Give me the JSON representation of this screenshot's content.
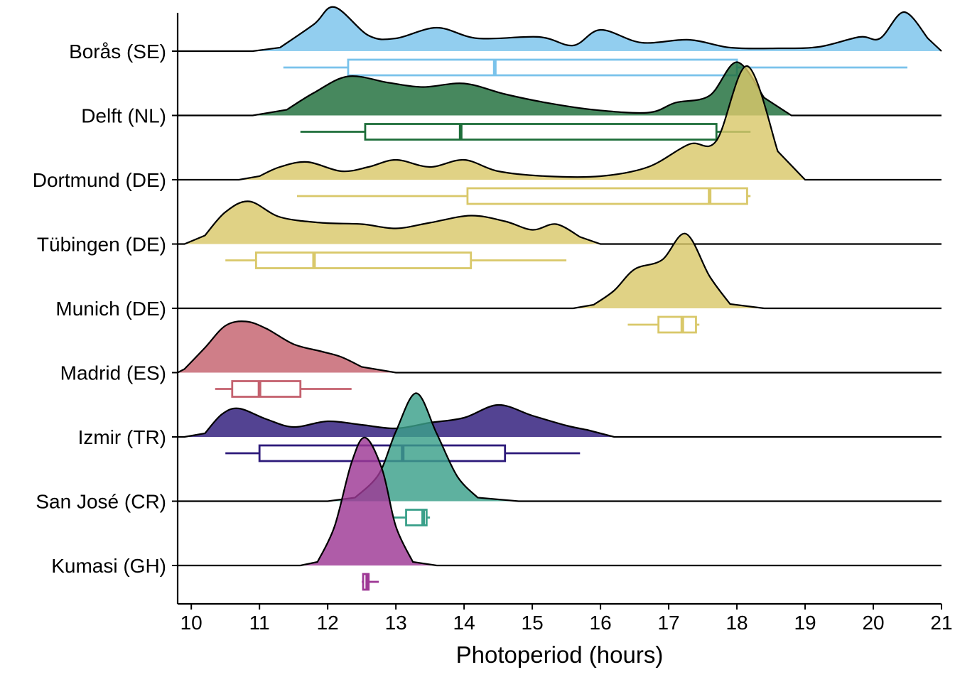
{
  "chart_data": {
    "type": "ridgeline",
    "xlabel": "Photoperiod (hours)",
    "ylabel": "",
    "xlim": [
      9.8,
      21
    ],
    "xticks": [
      10,
      11,
      12,
      13,
      14,
      15,
      16,
      17,
      18,
      19,
      20,
      21
    ],
    "series": [
      {
        "name": "Borås (SE)",
        "color": "#7AC3EB",
        "density_range": [
          10.9,
          21
        ],
        "density": [
          [
            11.3,
            0.05
          ],
          [
            11.8,
            0.38
          ],
          [
            12.1,
            0.62
          ],
          [
            12.6,
            0.22
          ],
          [
            13.0,
            0.18
          ],
          [
            13.6,
            0.33
          ],
          [
            14.2,
            0.18
          ],
          [
            15.1,
            0.2
          ],
          [
            15.6,
            0.08
          ],
          [
            16.0,
            0.3
          ],
          [
            16.6,
            0.12
          ],
          [
            17.3,
            0.16
          ],
          [
            17.9,
            0.05
          ],
          [
            18.6,
            0.04
          ],
          [
            19.2,
            0.06
          ],
          [
            19.8,
            0.2
          ],
          [
            20.1,
            0.18
          ],
          [
            20.45,
            0.55
          ],
          [
            20.8,
            0.18
          ]
        ],
        "box": {
          "whisker_low": 11.35,
          "q1": 12.3,
          "median": 14.45,
          "q3": 18.0,
          "whisker_high": 20.5
        }
      },
      {
        "name": "Delft (NL)",
        "color": "#1E6E3A",
        "density_range": [
          10.9,
          18.8
        ],
        "density": [
          [
            11.4,
            0.08
          ],
          [
            11.8,
            0.32
          ],
          [
            12.3,
            0.55
          ],
          [
            12.9,
            0.46
          ],
          [
            13.4,
            0.4
          ],
          [
            14.0,
            0.45
          ],
          [
            14.6,
            0.3
          ],
          [
            15.2,
            0.18
          ],
          [
            15.9,
            0.08
          ],
          [
            16.7,
            0.04
          ],
          [
            17.1,
            0.18
          ],
          [
            17.6,
            0.28
          ],
          [
            18.0,
            0.75
          ],
          [
            18.4,
            0.25
          ]
        ],
        "box": {
          "whisker_low": 11.6,
          "q1": 12.55,
          "median": 13.95,
          "q3": 17.7,
          "whisker_high": 18.2
        }
      },
      {
        "name": "Dortmund (DE)",
        "color": "#D9C86A",
        "density_range": [
          10.7,
          19.0
        ],
        "density": [
          [
            11.0,
            0.05
          ],
          [
            11.3,
            0.18
          ],
          [
            11.7,
            0.25
          ],
          [
            12.2,
            0.12
          ],
          [
            12.6,
            0.18
          ],
          [
            13.0,
            0.28
          ],
          [
            13.5,
            0.18
          ],
          [
            14.0,
            0.28
          ],
          [
            14.5,
            0.12
          ],
          [
            15.2,
            0.05
          ],
          [
            16.0,
            0.05
          ],
          [
            16.7,
            0.18
          ],
          [
            17.3,
            0.5
          ],
          [
            17.7,
            0.55
          ],
          [
            18.15,
            1.6
          ],
          [
            18.6,
            0.4
          ]
        ],
        "box": {
          "whisker_low": 11.55,
          "q1": 14.05,
          "median": 17.6,
          "q3": 18.15,
          "whisker_high": 18.2
        }
      },
      {
        "name": "Tübingen (DE)",
        "color": "#D9C86A",
        "density_range": [
          9.9,
          16.0
        ],
        "density": [
          [
            10.2,
            0.12
          ],
          [
            10.5,
            0.45
          ],
          [
            10.85,
            0.6
          ],
          [
            11.3,
            0.38
          ],
          [
            11.9,
            0.3
          ],
          [
            12.5,
            0.28
          ],
          [
            13.0,
            0.22
          ],
          [
            13.5,
            0.3
          ],
          [
            14.1,
            0.4
          ],
          [
            14.6,
            0.32
          ],
          [
            15.0,
            0.2
          ],
          [
            15.35,
            0.28
          ],
          [
            15.7,
            0.1
          ]
        ],
        "box": {
          "whisker_low": 10.5,
          "q1": 10.95,
          "median": 11.8,
          "q3": 14.1,
          "whisker_high": 15.5
        }
      },
      {
        "name": "Munich (DE)",
        "color": "#D9C86A",
        "density_range": [
          15.6,
          18.4
        ],
        "density": [
          [
            15.9,
            0.05
          ],
          [
            16.2,
            0.25
          ],
          [
            16.5,
            0.55
          ],
          [
            16.9,
            0.68
          ],
          [
            17.25,
            1.05
          ],
          [
            17.6,
            0.45
          ],
          [
            17.9,
            0.06
          ]
        ],
        "box": {
          "whisker_low": 16.4,
          "q1": 16.85,
          "median": 17.2,
          "q3": 17.4,
          "whisker_high": 17.45
        }
      },
      {
        "name": "Madrid (ES)",
        "color": "#C4616E",
        "density_range": [
          9.8,
          13.0
        ],
        "density": [
          [
            9.9,
            0.05
          ],
          [
            10.2,
            0.35
          ],
          [
            10.5,
            0.66
          ],
          [
            10.8,
            0.72
          ],
          [
            11.1,
            0.62
          ],
          [
            11.5,
            0.4
          ],
          [
            11.9,
            0.3
          ],
          [
            12.2,
            0.22
          ],
          [
            12.5,
            0.08
          ]
        ],
        "box": {
          "whisker_low": 10.35,
          "q1": 10.6,
          "median": 11.0,
          "q3": 11.6,
          "whisker_high": 12.35
        }
      },
      {
        "name": "Izmir (TR)",
        "color": "#2D1A7A",
        "density_range": [
          9.9,
          16.2
        ],
        "density": [
          [
            10.2,
            0.05
          ],
          [
            10.45,
            0.32
          ],
          [
            10.7,
            0.4
          ],
          [
            11.1,
            0.25
          ],
          [
            11.5,
            0.14
          ],
          [
            12.0,
            0.22
          ],
          [
            12.5,
            0.17
          ],
          [
            13.0,
            0.12
          ],
          [
            13.5,
            0.2
          ],
          [
            14.0,
            0.27
          ],
          [
            14.5,
            0.45
          ],
          [
            15.0,
            0.3
          ],
          [
            15.5,
            0.16
          ],
          [
            15.8,
            0.1
          ]
        ],
        "box": {
          "whisker_low": 10.5,
          "q1": 11.0,
          "median": 13.1,
          "q3": 14.6,
          "whisker_high": 15.7
        }
      },
      {
        "name": "San José (CR)",
        "color": "#3AA08A",
        "density_range": [
          12.0,
          14.8
        ],
        "density": [
          [
            12.4,
            0.05
          ],
          [
            12.75,
            0.38
          ],
          [
            13.0,
            0.98
          ],
          [
            13.3,
            1.52
          ],
          [
            13.6,
            0.95
          ],
          [
            13.9,
            0.35
          ],
          [
            14.2,
            0.05
          ]
        ],
        "box": {
          "whisker_low": 12.95,
          "q1": 13.15,
          "median": 13.4,
          "q3": 13.45,
          "whisker_high": 13.5
        }
      },
      {
        "name": "Kumasi (GH)",
        "color": "#9E3895",
        "density_range": [
          11.6,
          13.6
        ],
        "density": [
          [
            11.85,
            0.05
          ],
          [
            12.1,
            0.55
          ],
          [
            12.35,
            1.45
          ],
          [
            12.55,
            1.8
          ],
          [
            12.8,
            1.35
          ],
          [
            13.0,
            0.55
          ],
          [
            13.25,
            0.05
          ]
        ],
        "box": {
          "whisker_low": 12.5,
          "q1": 12.52,
          "median": 12.58,
          "q3": 12.6,
          "whisker_high": 12.75
        }
      }
    ]
  }
}
